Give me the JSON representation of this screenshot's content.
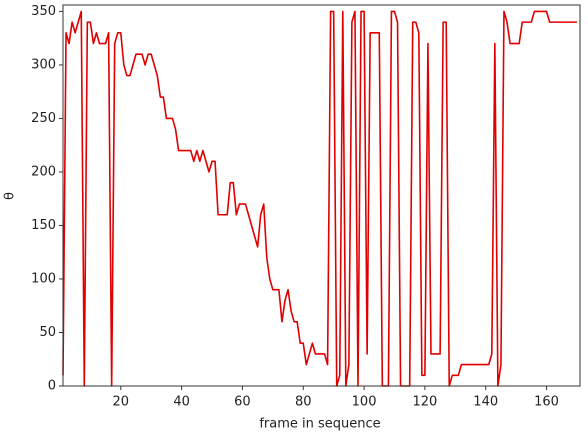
{
  "chart_data": {
    "type": "line",
    "xlabel": "frame in sequence",
    "ylabel": "θ",
    "x": [
      1,
      2,
      3,
      4,
      5,
      6,
      7,
      8,
      9,
      10,
      11,
      12,
      13,
      14,
      15,
      16,
      17,
      18,
      19,
      20,
      21,
      22,
      23,
      24,
      25,
      26,
      27,
      28,
      29,
      30,
      31,
      32,
      33,
      34,
      35,
      36,
      37,
      38,
      39,
      40,
      41,
      42,
      43,
      44,
      45,
      46,
      47,
      48,
      49,
      50,
      51,
      52,
      53,
      54,
      55,
      56,
      57,
      58,
      59,
      60,
      61,
      62,
      63,
      64,
      65,
      66,
      67,
      68,
      69,
      70,
      71,
      72,
      73,
      74,
      75,
      76,
      77,
      78,
      79,
      80,
      81,
      82,
      83,
      84,
      85,
      86,
      87,
      88,
      89,
      90,
      91,
      92,
      93,
      94,
      95,
      96,
      97,
      98,
      99,
      100,
      101,
      102,
      103,
      104,
      105,
      106,
      107,
      108,
      109,
      110,
      111,
      112,
      113,
      114,
      115,
      116,
      117,
      118,
      119,
      120,
      121,
      122,
      123,
      124,
      125,
      126,
      127,
      128,
      129,
      130,
      131,
      132,
      133,
      134,
      135,
      136,
      137,
      138,
      139,
      140,
      141,
      142,
      143,
      144,
      145,
      146,
      147,
      148,
      149,
      150,
      151,
      152,
      153,
      154,
      155,
      156,
      157,
      158,
      159,
      160,
      161,
      162,
      163,
      164,
      165,
      166,
      167,
      168,
      169,
      170
    ],
    "values": [
      10,
      330,
      320,
      340,
      330,
      340,
      350,
      0,
      340,
      340,
      320,
      330,
      320,
      320,
      320,
      330,
      0,
      320,
      330,
      330,
      300,
      290,
      290,
      300,
      310,
      310,
      310,
      300,
      310,
      310,
      300,
      290,
      270,
      270,
      250,
      250,
      250,
      240,
      220,
      220,
      220,
      220,
      220,
      210,
      220,
      210,
      220,
      210,
      200,
      210,
      210,
      160,
      160,
      160,
      160,
      190,
      190,
      160,
      170,
      170,
      170,
      160,
      150,
      140,
      130,
      160,
      170,
      120,
      100,
      90,
      90,
      90,
      60,
      80,
      90,
      70,
      60,
      60,
      40,
      40,
      20,
      30,
      40,
      30,
      30,
      30,
      30,
      20,
      350,
      350,
      0,
      10,
      350,
      0,
      20,
      340,
      350,
      0,
      350,
      350,
      30,
      330,
      330,
      330,
      330,
      0,
      0,
      0,
      350,
      350,
      340,
      0,
      0,
      0,
      0,
      340,
      340,
      330,
      10,
      10,
      320,
      30,
      30,
      30,
      30,
      340,
      340,
      0,
      10,
      10,
      10,
      20,
      20,
      20,
      20,
      20,
      20,
      20,
      20,
      20,
      20,
      30,
      320,
      0,
      20,
      350,
      340,
      320,
      320,
      320,
      320,
      340,
      340,
      340,
      340,
      350,
      350,
      350,
      350,
      350,
      340,
      340,
      340,
      340,
      340,
      340,
      340,
      340,
      340,
      340
    ],
    "color": "#e00000",
    "xlim": [
      1,
      171
    ],
    "ylim": [
      0,
      356
    ],
    "xticks": [
      20,
      40,
      60,
      80,
      100,
      120,
      140,
      160
    ],
    "yticks": [
      0,
      50,
      100,
      150,
      200,
      250,
      300,
      350
    ]
  }
}
